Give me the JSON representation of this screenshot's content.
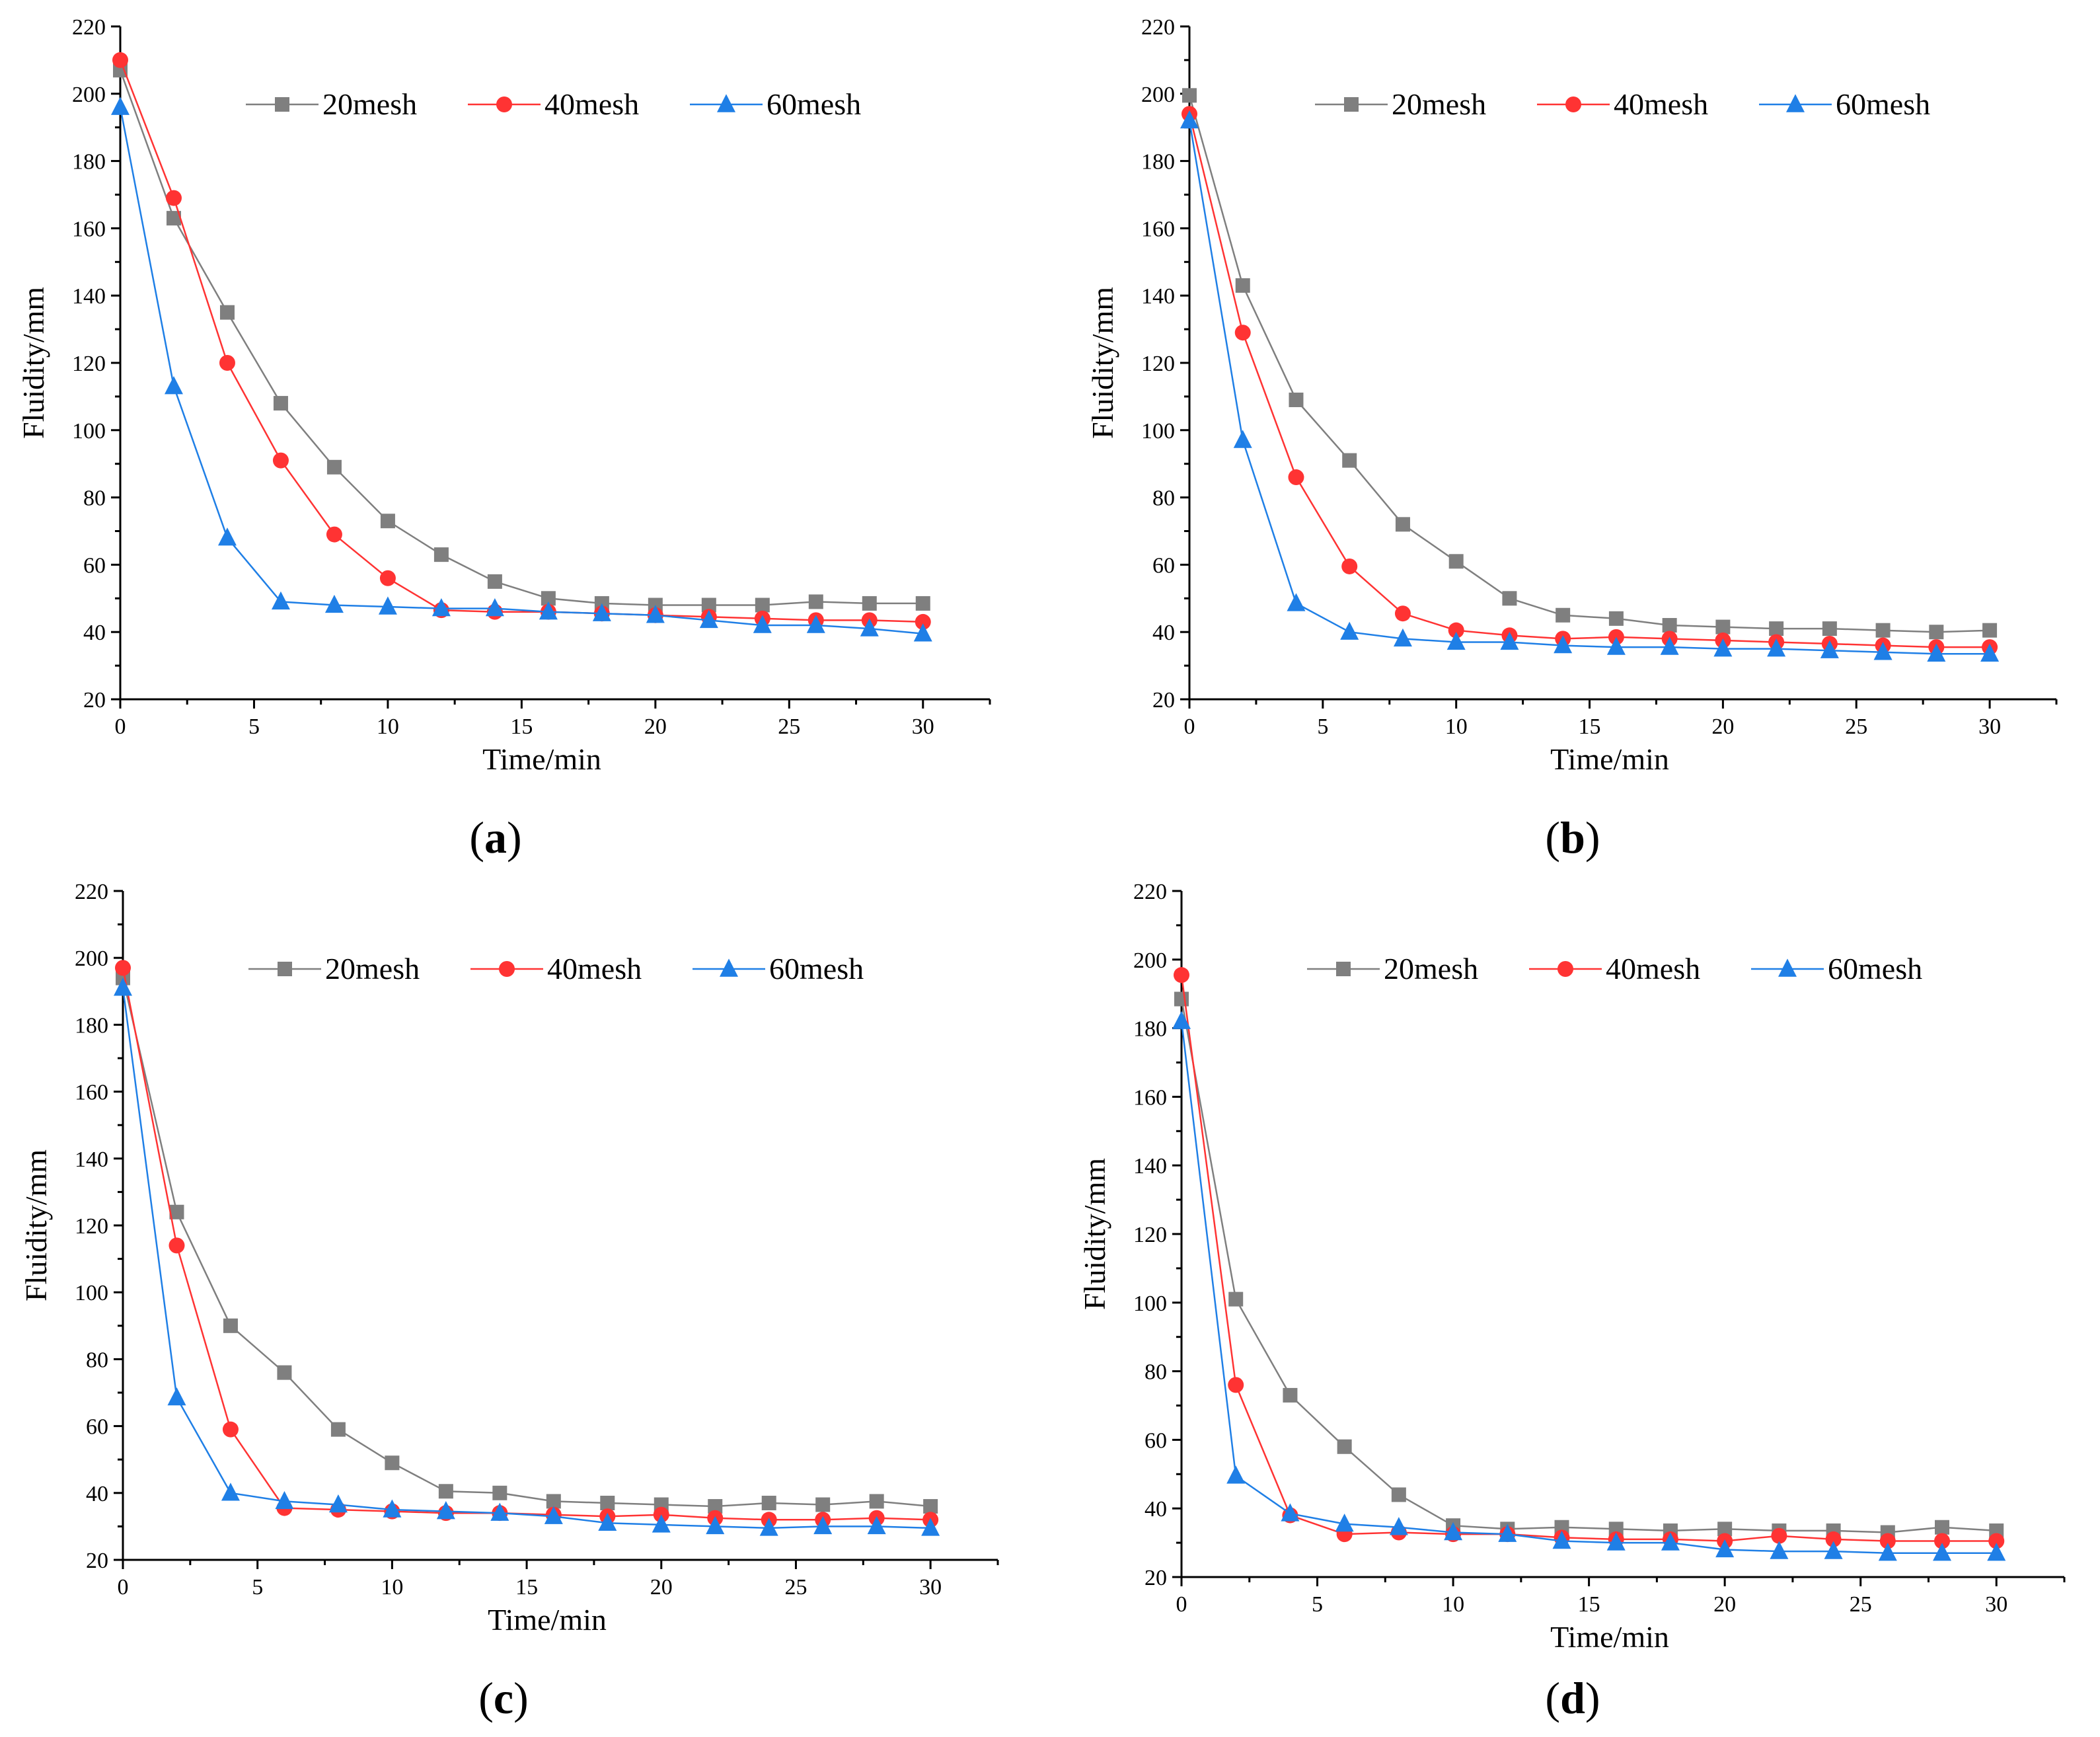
{
  "chart_data": [
    {
      "type": "line",
      "panel": "(a)",
      "caption_letter": "a",
      "x": [
        0,
        2,
        4,
        6,
        8,
        10,
        12,
        14,
        16,
        18,
        20,
        22,
        24,
        26,
        28,
        30
      ],
      "series": [
        {
          "name": "20mesh",
          "values": [
            207,
            163,
            135,
            108,
            89,
            73,
            63,
            55,
            50,
            48.5,
            48,
            48,
            48,
            49,
            48.5,
            48.5
          ]
        },
        {
          "name": "40mesh",
          "values": [
            210,
            169,
            120,
            91,
            69,
            56,
            46.5,
            46,
            46,
            45.5,
            45,
            44.5,
            44,
            43.5,
            43.5,
            43
          ]
        },
        {
          "name": "60mesh",
          "values": [
            196,
            113,
            68,
            49,
            48,
            47.5,
            47,
            47,
            46,
            45.5,
            45,
            43.5,
            42,
            42,
            41,
            39.5
          ]
        }
      ],
      "xlabel": "Time/min",
      "ylabel": "Fluidity/mm",
      "xlim": [
        0,
        32.5
      ],
      "ylim": [
        20,
        220
      ],
      "xticks": [
        0,
        5,
        10,
        15,
        20,
        25,
        30
      ],
      "yticks": [
        20,
        40,
        60,
        80,
        100,
        120,
        140,
        160,
        180,
        200,
        220
      ]
    },
    {
      "type": "line",
      "panel": "(b)",
      "caption_letter": "b",
      "x": [
        0,
        2,
        4,
        6,
        8,
        10,
        12,
        14,
        16,
        18,
        20,
        22,
        24,
        26,
        28,
        30
      ],
      "series": [
        {
          "name": "20mesh",
          "values": [
            199.5,
            143,
            109,
            91,
            72,
            61,
            50,
            45,
            44,
            42,
            41.5,
            41,
            41,
            40.5,
            40,
            40.5
          ]
        },
        {
          "name": "40mesh",
          "values": [
            194,
            129,
            86,
            59.5,
            45.5,
            40.5,
            39,
            38,
            38.5,
            38,
            37.5,
            37,
            36.5,
            36,
            35.5,
            35.5
          ]
        },
        {
          "name": "60mesh",
          "values": [
            192,
            97,
            48.5,
            40,
            38,
            37,
            37,
            36,
            35.5,
            35.5,
            35,
            35,
            34.5,
            34,
            33.5,
            33.5
          ]
        }
      ],
      "xlabel": "Time/min",
      "ylabel": "Fluidity/mm",
      "xlim": [
        0,
        32.5
      ],
      "ylim": [
        20,
        220
      ],
      "xticks": [
        0,
        5,
        10,
        15,
        20,
        25,
        30
      ],
      "yticks": [
        20,
        40,
        60,
        80,
        100,
        120,
        140,
        160,
        180,
        200,
        220
      ]
    },
    {
      "type": "line",
      "panel": "(c)",
      "caption_letter": "c",
      "x": [
        0,
        2,
        4,
        6,
        8,
        10,
        12,
        14,
        16,
        18,
        20,
        22,
        24,
        26,
        28,
        30
      ],
      "series": [
        {
          "name": "20mesh",
          "values": [
            194,
            124,
            90,
            76,
            59,
            49,
            40.5,
            40,
            37.5,
            37,
            36.5,
            36,
            37,
            36.5,
            37.5,
            36
          ]
        },
        {
          "name": "40mesh",
          "values": [
            197,
            114,
            59,
            35.5,
            35,
            34.5,
            34,
            34,
            33.5,
            33,
            33.5,
            32.5,
            32,
            32,
            32.5,
            32
          ]
        },
        {
          "name": "60mesh",
          "values": [
            191,
            68.5,
            40,
            37.5,
            36.5,
            35,
            34.5,
            34,
            33,
            31,
            30.5,
            30,
            29.5,
            30,
            30,
            29.5
          ]
        }
      ],
      "xlabel": "Time/min",
      "ylabel": "Fluidity/mm",
      "xlim": [
        0,
        32.5
      ],
      "ylim": [
        20,
        220
      ],
      "xticks": [
        0,
        5,
        10,
        15,
        20,
        25,
        30
      ],
      "yticks": [
        20,
        40,
        60,
        80,
        100,
        120,
        140,
        160,
        180,
        200,
        220
      ]
    },
    {
      "type": "line",
      "panel": "(d)",
      "caption_letter": "d",
      "x": [
        0,
        2,
        4,
        6,
        8,
        10,
        12,
        14,
        16,
        18,
        20,
        22,
        24,
        26,
        28,
        30
      ],
      "series": [
        {
          "name": "20mesh",
          "values": [
            188.5,
            101,
            73,
            58,
            44,
            35,
            34,
            34.5,
            34,
            33.5,
            34,
            33.5,
            33.5,
            33,
            34.5,
            33.5
          ]
        },
        {
          "name": "40mesh",
          "values": [
            195.5,
            76,
            38,
            32.5,
            33,
            32.5,
            32.5,
            31.5,
            31,
            31,
            30.5,
            32,
            31,
            30.5,
            30.5,
            30.5
          ]
        },
        {
          "name": "60mesh",
          "values": [
            182,
            49.5,
            38.5,
            35.5,
            34.5,
            33,
            32.5,
            30.5,
            30,
            30,
            28,
            27.5,
            27.5,
            27,
            27,
            27
          ]
        }
      ],
      "xlabel": "Time/min",
      "ylabel": "Fluidity/mm",
      "xlim": [
        0,
        32.5
      ],
      "ylim": [
        20,
        220
      ],
      "xticks": [
        0,
        5,
        10,
        15,
        20,
        25,
        30
      ],
      "yticks": [
        20,
        40,
        60,
        80,
        100,
        120,
        140,
        160,
        180,
        200,
        220
      ]
    }
  ],
  "series_style": {
    "20mesh": {
      "color": "#7f7f7f",
      "marker": "square"
    },
    "40mesh": {
      "color": "#ff3333",
      "marker": "circle"
    },
    "60mesh": {
      "color": "#1f7fe6",
      "marker": "triangle"
    }
  }
}
